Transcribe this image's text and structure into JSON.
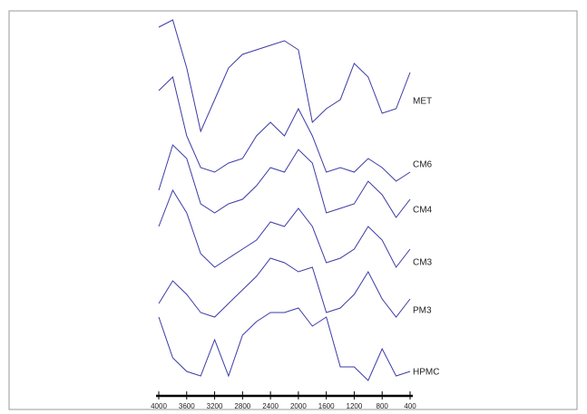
{
  "chart_data": {
    "type": "line",
    "x": [
      4000,
      3800,
      3600,
      3400,
      3200,
      3000,
      2800,
      2600,
      2400,
      2200,
      2000,
      1800,
      1600,
      1400,
      1200,
      1000,
      800,
      600,
      400
    ],
    "xlim": [
      4000,
      400
    ],
    "xticks": [
      4000,
      3600,
      3200,
      2800,
      2400,
      2000,
      1600,
      1200,
      800,
      400
    ],
    "series": [
      {
        "name": "MET",
        "color": "#3b3ba6",
        "values": [
          120,
          128,
          75,
          5,
          40,
          75,
          90,
          95,
          100,
          105,
          95,
          15,
          30,
          40,
          80,
          65,
          25,
          30,
          70
        ]
      },
      {
        "name": "CM6",
        "color": "#3b3ba6",
        "values": [
          115,
          130,
          65,
          30,
          25,
          35,
          40,
          65,
          80,
          65,
          95,
          65,
          25,
          30,
          25,
          40,
          30,
          15,
          25
        ]
      },
      {
        "name": "CM4",
        "color": "#3b3ba6",
        "values": [
          55,
          105,
          90,
          40,
          30,
          40,
          45,
          60,
          80,
          75,
          100,
          85,
          30,
          35,
          40,
          65,
          50,
          25,
          45
        ]
      },
      {
        "name": "CM3",
        "color": "#3b3ba6",
        "values": [
          70,
          110,
          85,
          40,
          25,
          35,
          45,
          55,
          75,
          70,
          90,
          70,
          30,
          35,
          45,
          70,
          55,
          25,
          45
        ]
      },
      {
        "name": "PM3",
        "color": "#3b3ba6",
        "values": [
          35,
          60,
          45,
          25,
          20,
          35,
          50,
          65,
          85,
          80,
          70,
          75,
          25,
          30,
          45,
          70,
          40,
          20,
          40
        ]
      },
      {
        "name": "HPMC",
        "color": "#3b3ba6",
        "values": [
          80,
          35,
          20,
          15,
          55,
          15,
          60,
          75,
          85,
          85,
          90,
          70,
          80,
          25,
          25,
          10,
          45,
          15,
          20
        ]
      }
    ]
  }
}
